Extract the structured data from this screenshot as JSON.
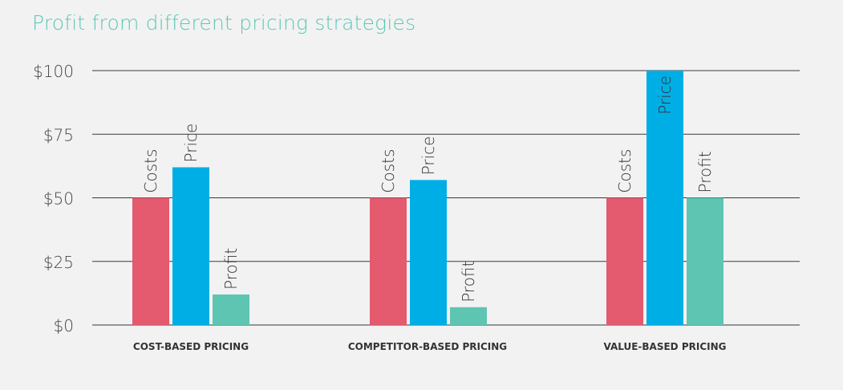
{
  "title": "Profit from different pricing strategies",
  "page_number": "",
  "colors": {
    "title": "#5cc8b6",
    "costs": "#e45a6e",
    "price": "#00aee6",
    "profit": "#5ec5b3",
    "grid": "#3a3a3a",
    "text": "#333333"
  },
  "chart_data": {
    "type": "bar",
    "title": "Profit from different pricing strategies",
    "xlabel": "",
    "ylabel": "",
    "categories": [
      "COST-BASED PRICING",
      "COMPETITOR-BASED PRICING",
      "VALUE-BASED PRICING"
    ],
    "series": [
      {
        "name": "Costs",
        "values": [
          50,
          50,
          50
        ]
      },
      {
        "name": "Price",
        "values": [
          62,
          57,
          100
        ]
      },
      {
        "name": "Profit",
        "values": [
          12,
          7,
          50
        ]
      }
    ],
    "ylim": [
      0,
      100
    ],
    "yticks": [
      0,
      25,
      50,
      75,
      100
    ],
    "ytick_labels": [
      "$0",
      "$25",
      "$50",
      "$75",
      "$100"
    ],
    "grid": true,
    "legend": "none (series names printed on bars)"
  }
}
